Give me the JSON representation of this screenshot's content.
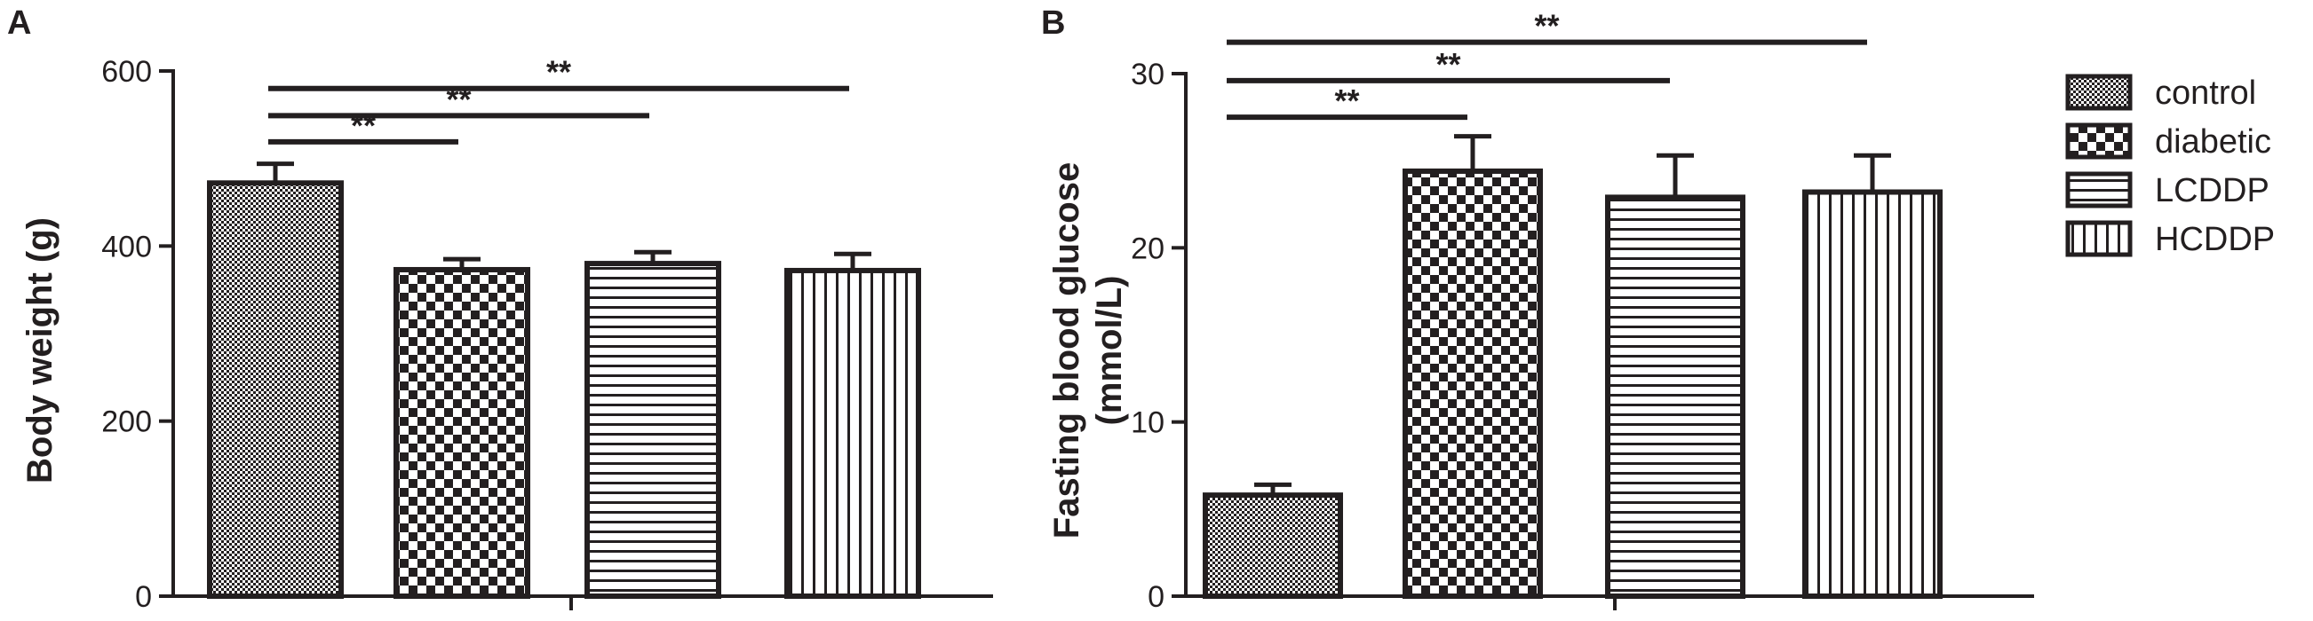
{
  "chart_data": [
    {
      "panel": "A",
      "type": "bar",
      "categories": [
        "control",
        "diabetic",
        "LCDDP",
        "HCDDP"
      ],
      "values": [
        472,
        373,
        380,
        372
      ],
      "errors": [
        22,
        12,
        13,
        19
      ],
      "ylabel": "Body weight (g)",
      "ylim": [
        0,
        600
      ],
      "yticks": [
        0,
        200,
        400,
        600
      ],
      "significance": [
        {
          "from": "control",
          "to": "diabetic",
          "label": "**",
          "y": 519
        },
        {
          "from": "control",
          "to": "LCDDP",
          "label": "**",
          "y": 549
        },
        {
          "from": "control",
          "to": "HCDDP",
          "label": "**",
          "y": 580
        }
      ]
    },
    {
      "panel": "B",
      "type": "bar",
      "categories": [
        "control",
        "diabetic",
        "LCDDP",
        "HCDDP"
      ],
      "values": [
        5.8,
        24.4,
        22.9,
        23.2
      ],
      "errors": [
        0.6,
        2.0,
        2.4,
        2.1
      ],
      "ylabel": "Fasting blood glucose",
      "ylabel2": "(mmol/L)",
      "ylim": [
        0,
        30
      ],
      "yticks": [
        0,
        10,
        20,
        30
      ],
      "significance": [
        {
          "from": "control",
          "to": "diabetic",
          "label": "**",
          "y": 27.5
        },
        {
          "from": "control",
          "to": "LCDDP",
          "label": "**",
          "y": 29.6
        },
        {
          "from": "control",
          "to": "HCDDP",
          "label": "**",
          "y": 31.8
        }
      ]
    }
  ],
  "legend": {
    "items": [
      {
        "label": "control",
        "pattern": "fine-check"
      },
      {
        "label": "diabetic",
        "pattern": "checker"
      },
      {
        "label": "LCDDP",
        "pattern": "horizontal-lines"
      },
      {
        "label": "HCDDP",
        "pattern": "vertical-lines"
      }
    ]
  },
  "colors": {
    "ink": "#231f20",
    "background": "#ffffff"
  }
}
